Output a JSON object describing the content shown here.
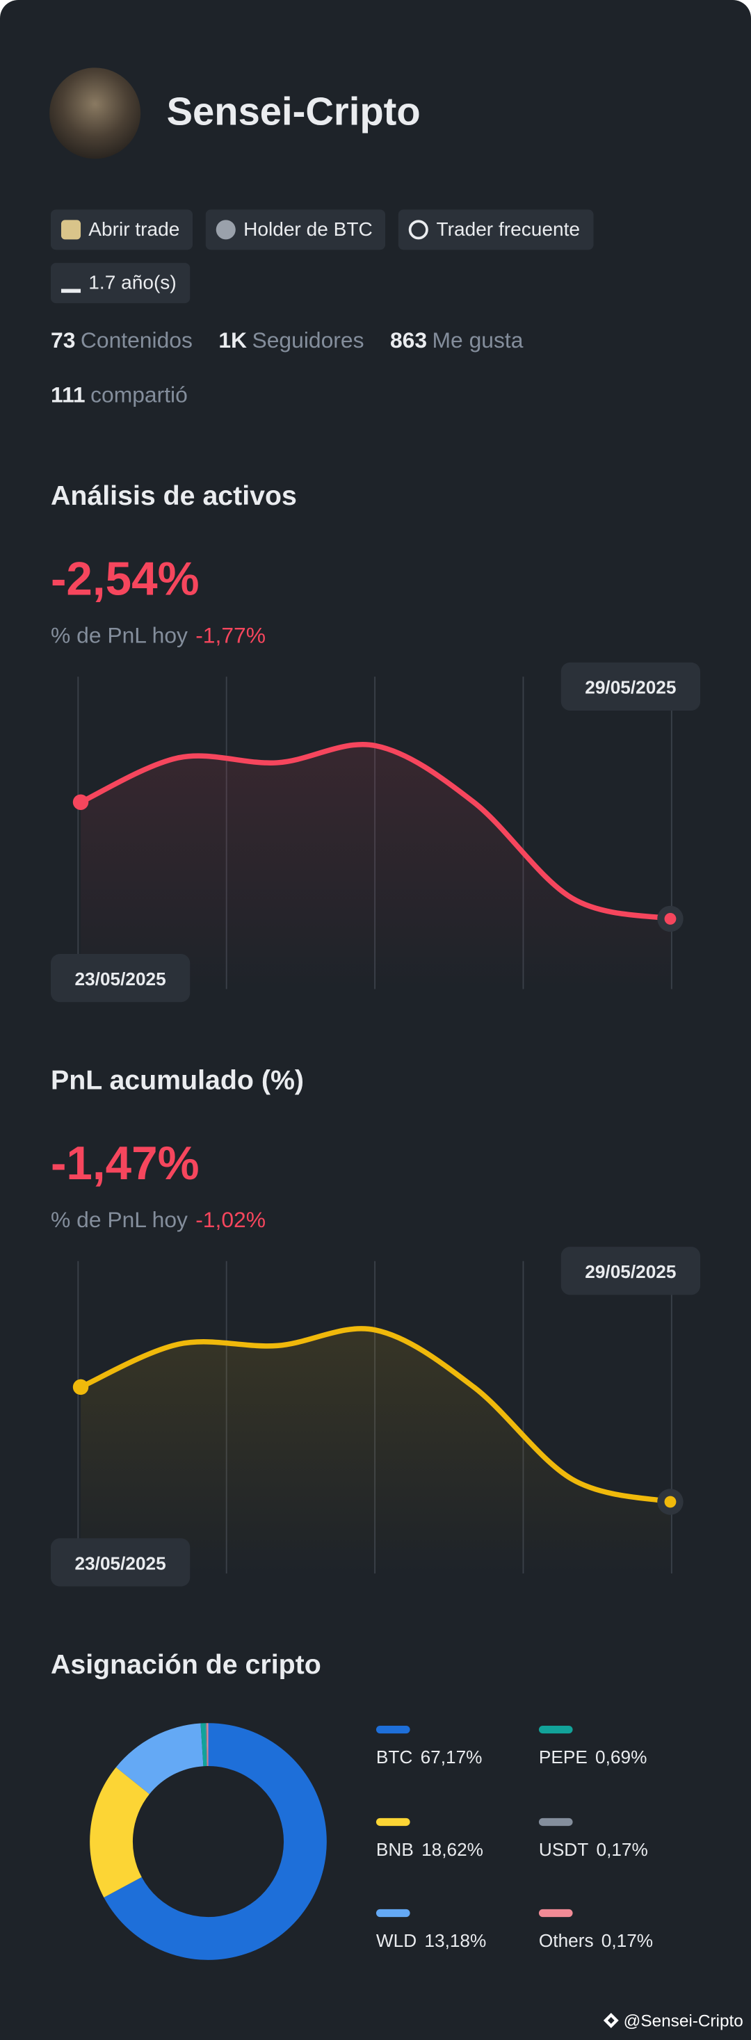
{
  "profile": {
    "name": "Sensei-Cripto",
    "badges": [
      "Abrir trade",
      "Holder de BTC",
      "Trader frecuente",
      "1.7 año(s)"
    ],
    "stats": [
      {
        "value": "73",
        "label": "Contenidos"
      },
      {
        "value": "1K",
        "label": "Seguidores"
      },
      {
        "value": "863",
        "label": "Me gusta"
      },
      {
        "value": "111",
        "label": "compartió"
      }
    ]
  },
  "chart_data": [
    {
      "type": "line",
      "title": "Análisis de activos",
      "headline": "-2,54%",
      "subtitle": "% de PnL hoy",
      "subtitle_value": "-1,77%",
      "categories": [
        "23/05/2025",
        null,
        null,
        null,
        null,
        null,
        "29/05/2025"
      ],
      "series": [
        {
          "color": "#f6465d",
          "values": [
            0,
            0.97,
            0.86,
            1.23,
            0,
            -2.09,
            -2.54
          ]
        }
      ]
    },
    {
      "type": "line",
      "title": "PnL acumulado (%)",
      "headline": "-1,47%",
      "subtitle": "% de PnL hoy",
      "subtitle_value": "-1,02%",
      "categories": [
        "23/05/2025",
        null,
        null,
        null,
        null,
        null,
        "29/05/2025"
      ],
      "series": [
        {
          "color": "#f0b90b",
          "values": [
            0,
            0.55,
            0.53,
            0.73,
            0,
            -1.18,
            -1.47
          ]
        }
      ]
    },
    {
      "type": "pie",
      "title": "Asignación de cripto",
      "categories": [
        "BTC",
        "BNB",
        "WLD",
        "PEPE",
        "USDT",
        "Others"
      ],
      "values": [
        67.17,
        18.62,
        13.18,
        0.69,
        0.17,
        0.17
      ],
      "value_labels": [
        "67,17%",
        "18,62%",
        "13,18%",
        "0,69%",
        "0,17%",
        "0,17%"
      ],
      "colors": [
        "#1e6fd9",
        "#fcd535",
        "#64a9f5",
        "#12a39a",
        "#848e9c",
        "#f28b96"
      ]
    }
  ],
  "footer": "@Sensei-Cripto"
}
